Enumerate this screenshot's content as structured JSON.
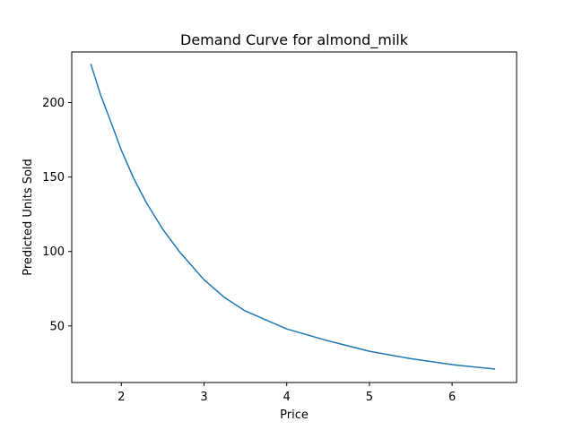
{
  "chart_data": {
    "type": "line",
    "title": "Demand Curve for almond_milk",
    "xlabel": "Price",
    "ylabel": "Predicted Units Sold",
    "xlim": [
      1.4,
      6.78
    ],
    "ylim": [
      12,
      234
    ],
    "xticks": [
      2,
      3,
      4,
      5,
      6
    ],
    "yticks": [
      50,
      100,
      150,
      200
    ],
    "grid": false,
    "series": [
      {
        "color": "#1f77b4",
        "x": [
          1.63,
          1.75,
          1.9,
          2.0,
          2.15,
          2.3,
          2.5,
          2.7,
          3.0,
          3.25,
          3.5,
          3.75,
          4.0,
          4.5,
          5.0,
          5.5,
          6.0,
          6.52
        ],
        "y": [
          226,
          205,
          183,
          168,
          149,
          133,
          115,
          100,
          81,
          69,
          60,
          54,
          48,
          40,
          33,
          28,
          24,
          21
        ]
      }
    ]
  }
}
